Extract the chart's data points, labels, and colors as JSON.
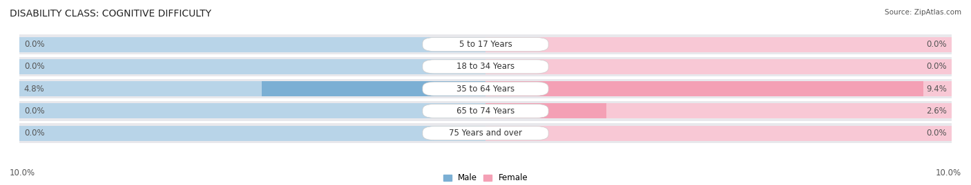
{
  "title": "DISABILITY CLASS: COGNITIVE DIFFICULTY",
  "source": "Source: ZipAtlas.com",
  "categories": [
    "5 to 17 Years",
    "18 to 34 Years",
    "35 to 64 Years",
    "65 to 74 Years",
    "75 Years and over"
  ],
  "male_values": [
    0.0,
    0.0,
    4.8,
    0.0,
    0.0
  ],
  "female_values": [
    0.0,
    0.0,
    9.4,
    2.6,
    0.0
  ],
  "male_color": "#7bafd4",
  "female_color": "#f4a0b5",
  "male_light_color": "#b8d4e8",
  "female_light_color": "#f8c8d5",
  "row_bg_color": "#e8e8ec",
  "max_val": 10.0,
  "x_left_label": "10.0%",
  "x_right_label": "10.0%",
  "title_fontsize": 10,
  "label_fontsize": 8.5,
  "tick_fontsize": 8.5,
  "source_fontsize": 7.5
}
